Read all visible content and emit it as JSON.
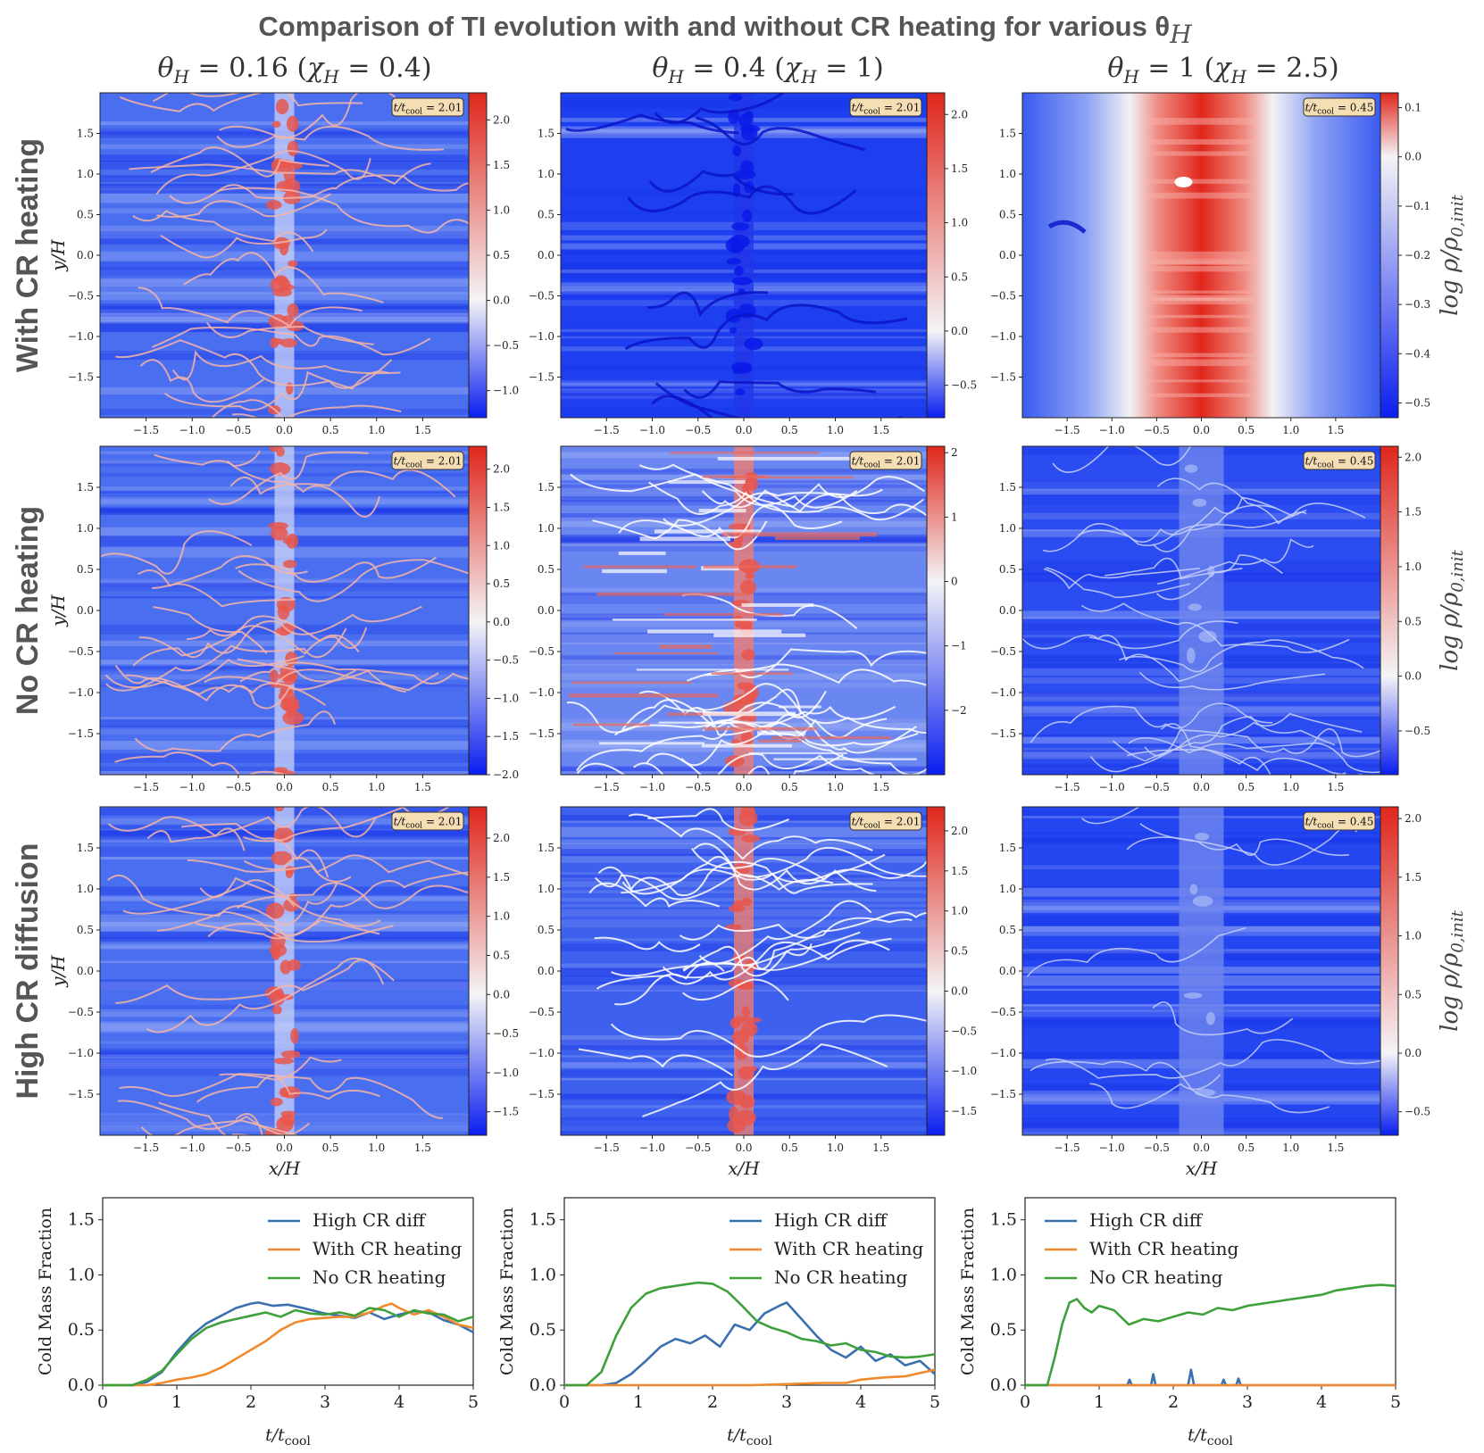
{
  "title": "Comparison of TI evolution with and without CR heating for various θ",
  "title_sub": "H",
  "columns": [
    {
      "theta": "0.16",
      "chi": "0.4"
    },
    {
      "theta": "0.4",
      "chi": "1"
    },
    {
      "theta": "1",
      "chi": "2.5"
    }
  ],
  "col_header_parts": {
    "theta": "θ",
    "sub": "H",
    "eq": " = ",
    "chi": "χ"
  },
  "rows": [
    "With CR heating",
    "No CR heating",
    "High CR diffusion"
  ],
  "axis_labels": {
    "x": "x/H",
    "y": "y/H",
    "colorbar": "log ρ/ρ",
    "colorbar_sub": "0,init"
  },
  "spatial_ticks": [
    "−1.5",
    "−1.0",
    "−0.5",
    "0.0",
    "0.5",
    "1.0",
    "1.5"
  ],
  "spatial_tick_values": [
    -1.5,
    -1.0,
    -0.5,
    0.0,
    0.5,
    1.0,
    1.5
  ],
  "colors": {
    "low": "#0a1ef0",
    "mid": "#f4f4f6",
    "high": "#e0261c",
    "badge_bg": "#f5deb3"
  },
  "panels": [
    {
      "row": 0,
      "col": 0,
      "time": "2.01",
      "cbar_range": [
        -1.3,
        2.3
      ],
      "cbar_ticks": [
        -1.0,
        -0.5,
        0.0,
        0.5,
        1.0,
        1.5,
        2.0
      ],
      "cbar_tick_labels": [
        "−1.0",
        "−0.5",
        "0.0",
        "0.5",
        "1.0",
        "1.5",
        "2.0"
      ],
      "pattern": "filaments"
    },
    {
      "row": 0,
      "col": 1,
      "time": "2.01",
      "cbar_range": [
        -0.8,
        2.2
      ],
      "cbar_ticks": [
        -0.5,
        0.0,
        0.5,
        1.0,
        1.5,
        2.0
      ],
      "cbar_tick_labels": [
        "−0.5",
        "0.0",
        "0.5",
        "1.0",
        "1.5",
        "2.0"
      ],
      "pattern": "dark"
    },
    {
      "row": 0,
      "col": 2,
      "time": "0.45",
      "cbar_range": [
        -0.53,
        0.13
      ],
      "cbar_ticks": [
        -0.5,
        -0.4,
        -0.3,
        -0.2,
        -0.1,
        0.0,
        0.1
      ],
      "cbar_tick_labels": [
        "−0.5",
        "−0.4",
        "−0.3",
        "−0.2",
        "−0.1",
        "0.0",
        "0.1"
      ],
      "pattern": "hotcore"
    },
    {
      "row": 1,
      "col": 0,
      "time": "2.01",
      "cbar_range": [
        -2.0,
        2.3
      ],
      "cbar_ticks": [
        -2.0,
        -1.5,
        -1.0,
        -0.5,
        0.0,
        0.5,
        1.0,
        1.5,
        2.0
      ],
      "cbar_tick_labels": [
        "−2.0",
        "−1.5",
        "−1.0",
        "−0.5",
        "0.0",
        "0.5",
        "1.0",
        "1.5",
        "2.0"
      ],
      "pattern": "filaments"
    },
    {
      "row": 1,
      "col": 1,
      "time": "2.01",
      "cbar_range": [
        -3.0,
        2.1
      ],
      "cbar_ticks": [
        -2,
        -1,
        0,
        1,
        2
      ],
      "cbar_tick_labels": [
        "−2",
        "−1",
        "0",
        "1",
        "2"
      ],
      "pattern": "turbulent"
    },
    {
      "row": 1,
      "col": 2,
      "time": "0.45",
      "cbar_range": [
        -0.9,
        2.1
      ],
      "cbar_ticks": [
        -0.5,
        0.0,
        0.5,
        1.0,
        1.5,
        2.0
      ],
      "cbar_tick_labels": [
        "−0.5",
        "0.0",
        "0.5",
        "1.0",
        "1.5",
        "2.0"
      ],
      "pattern": "waves"
    },
    {
      "row": 2,
      "col": 0,
      "time": "2.01",
      "cbar_range": [
        -1.8,
        2.4
      ],
      "cbar_ticks": [
        -1.5,
        -1.0,
        -0.5,
        0.0,
        0.5,
        1.0,
        1.5,
        2.0
      ],
      "cbar_tick_labels": [
        "−1.5",
        "−1.0",
        "−0.5",
        "0.0",
        "0.5",
        "1.0",
        "1.5",
        "2.0"
      ],
      "pattern": "filaments"
    },
    {
      "row": 2,
      "col": 1,
      "time": "2.01",
      "cbar_range": [
        -1.8,
        2.3
      ],
      "cbar_ticks": [
        -1.5,
        -1.0,
        -0.5,
        0.0,
        0.5,
        1.0,
        1.5,
        2.0
      ],
      "cbar_tick_labels": [
        "−1.5",
        "−1.0",
        "−0.5",
        "0.0",
        "0.5",
        "1.0",
        "1.5",
        "2.0"
      ],
      "pattern": "streaks"
    },
    {
      "row": 2,
      "col": 2,
      "time": "0.45",
      "cbar_range": [
        -0.7,
        2.1
      ],
      "cbar_ticks": [
        -0.5,
        0.0,
        0.5,
        1.0,
        1.5,
        2.0
      ],
      "cbar_tick_labels": [
        "−0.5",
        "0.0",
        "0.5",
        "1.0",
        "1.5",
        "2.0"
      ],
      "pattern": "smooth"
    }
  ],
  "chart_data": [
    {
      "type": "line",
      "title": "θH = 0.16 (χH = 0.4)",
      "xlabel": "t/tcool",
      "ylabel": "Cold Mass Fraction",
      "xlim": [
        0,
        5
      ],
      "ylim": [
        0,
        1.7
      ],
      "xticks": [
        0,
        1,
        2,
        3,
        4,
        5
      ],
      "yticks": [
        0.0,
        0.5,
        1.0,
        1.5
      ],
      "legend": "upper-right",
      "series": [
        {
          "name": "High CR diff",
          "color": "#3a70b0",
          "x": [
            0,
            0.4,
            0.6,
            0.8,
            1.0,
            1.2,
            1.4,
            1.6,
            1.8,
            2.0,
            2.1,
            2.3,
            2.5,
            2.7,
            3.0,
            3.2,
            3.4,
            3.6,
            3.8,
            4.0,
            4.2,
            4.4,
            4.6,
            4.8,
            5.0
          ],
          "y": [
            0,
            0.0,
            0.03,
            0.12,
            0.3,
            0.45,
            0.56,
            0.63,
            0.7,
            0.74,
            0.75,
            0.72,
            0.73,
            0.7,
            0.65,
            0.63,
            0.61,
            0.66,
            0.6,
            0.64,
            0.67,
            0.66,
            0.59,
            0.55,
            0.48
          ]
        },
        {
          "name": "With CR heating",
          "color": "#f08a2c",
          "x": [
            0,
            0.6,
            0.8,
            1.0,
            1.2,
            1.4,
            1.6,
            1.8,
            2.0,
            2.2,
            2.4,
            2.6,
            2.8,
            3.0,
            3.2,
            3.4,
            3.6,
            3.8,
            3.9,
            4.0,
            4.2,
            4.4,
            4.6,
            4.8,
            5.0
          ],
          "y": [
            0,
            0.0,
            0.02,
            0.05,
            0.07,
            0.1,
            0.16,
            0.24,
            0.32,
            0.4,
            0.5,
            0.57,
            0.6,
            0.61,
            0.62,
            0.62,
            0.66,
            0.72,
            0.74,
            0.7,
            0.64,
            0.68,
            0.62,
            0.55,
            0.52
          ]
        },
        {
          "name": "No CR heating",
          "color": "#3ea03a",
          "x": [
            0,
            0.4,
            0.6,
            0.8,
            1.0,
            1.2,
            1.4,
            1.6,
            1.8,
            2.0,
            2.2,
            2.4,
            2.6,
            2.8,
            3.0,
            3.2,
            3.4,
            3.6,
            3.8,
            4.0,
            4.2,
            4.4,
            4.6,
            4.8,
            5.0
          ],
          "y": [
            0,
            0.0,
            0.05,
            0.13,
            0.28,
            0.42,
            0.52,
            0.57,
            0.6,
            0.63,
            0.66,
            0.62,
            0.68,
            0.65,
            0.64,
            0.66,
            0.63,
            0.7,
            0.68,
            0.62,
            0.68,
            0.65,
            0.64,
            0.58,
            0.62
          ]
        }
      ]
    },
    {
      "type": "line",
      "title": "θH = 0.4 (χH = 1)",
      "xlabel": "t/tcool",
      "ylabel": "Cold Mass Fraction",
      "xlim": [
        0,
        5
      ],
      "ylim": [
        0,
        1.7
      ],
      "xticks": [
        0,
        1,
        2,
        3,
        4,
        5
      ],
      "yticks": [
        0.0,
        0.5,
        1.0,
        1.5
      ],
      "legend": "upper-right",
      "series": [
        {
          "name": "High CR diff",
          "color": "#3a70b0",
          "x": [
            0,
            0.5,
            0.7,
            0.9,
            1.1,
            1.3,
            1.5,
            1.7,
            1.9,
            2.1,
            2.3,
            2.5,
            2.7,
            2.9,
            3.0,
            3.2,
            3.4,
            3.6,
            3.8,
            4.0,
            4.2,
            4.4,
            4.6,
            4.8,
            5.0
          ],
          "y": [
            0,
            0.0,
            0.02,
            0.1,
            0.22,
            0.35,
            0.42,
            0.38,
            0.45,
            0.35,
            0.55,
            0.5,
            0.65,
            0.72,
            0.75,
            0.6,
            0.45,
            0.32,
            0.25,
            0.35,
            0.22,
            0.28,
            0.18,
            0.22,
            0.1
          ]
        },
        {
          "name": "With CR heating",
          "color": "#f08a2c",
          "x": [
            0,
            1.0,
            2.0,
            2.5,
            3.0,
            3.5,
            3.8,
            4.0,
            4.3,
            4.6,
            4.8,
            5.0
          ],
          "y": [
            0,
            0.0,
            0.0,
            0.0,
            0.01,
            0.02,
            0.02,
            0.05,
            0.07,
            0.08,
            0.11,
            0.14
          ]
        },
        {
          "name": "No CR heating",
          "color": "#3ea03a",
          "x": [
            0,
            0.3,
            0.5,
            0.7,
            0.9,
            1.1,
            1.3,
            1.5,
            1.8,
            2.0,
            2.2,
            2.4,
            2.6,
            2.8,
            3.0,
            3.2,
            3.4,
            3.6,
            3.8,
            4.0,
            4.2,
            4.4,
            4.6,
            4.8,
            5.0
          ],
          "y": [
            0,
            0.0,
            0.12,
            0.45,
            0.7,
            0.83,
            0.88,
            0.9,
            0.93,
            0.92,
            0.85,
            0.72,
            0.58,
            0.52,
            0.48,
            0.42,
            0.4,
            0.36,
            0.38,
            0.32,
            0.3,
            0.26,
            0.25,
            0.26,
            0.28
          ]
        }
      ]
    },
    {
      "type": "line",
      "title": "θH = 1 (χH = 2.5)",
      "xlabel": "t/tcool",
      "ylabel": "Cold Mass Fraction",
      "xlim": [
        0,
        5
      ],
      "ylim": [
        0,
        1.7
      ],
      "xticks": [
        0,
        1,
        2,
        3,
        4,
        5
      ],
      "yticks": [
        0.0,
        0.5,
        1.0,
        1.5
      ],
      "legend": "upper-left",
      "series": [
        {
          "name": "High CR diff",
          "color": "#3a70b0",
          "x": [
            0,
            1.38,
            1.41,
            1.44,
            1.7,
            1.73,
            1.76,
            2.2,
            2.24,
            2.28,
            2.65,
            2.68,
            2.71,
            2.85,
            2.88,
            2.91,
            5.0
          ],
          "y": [
            0,
            0.0,
            0.05,
            0.0,
            0.0,
            0.1,
            0.0,
            0.0,
            0.14,
            0.0,
            0.0,
            0.05,
            0.0,
            0.0,
            0.06,
            0.0,
            0.0
          ]
        },
        {
          "name": "With CR heating",
          "color": "#f08a2c",
          "x": [
            0,
            5.0
          ],
          "y": [
            0.0,
            0.0
          ]
        },
        {
          "name": "No CR heating",
          "color": "#3ea03a",
          "x": [
            0,
            0.3,
            0.4,
            0.5,
            0.6,
            0.7,
            0.8,
            0.9,
            1.0,
            1.2,
            1.4,
            1.6,
            1.8,
            2.0,
            2.2,
            2.4,
            2.6,
            2.8,
            3.0,
            3.2,
            3.4,
            3.6,
            3.8,
            4.0,
            4.2,
            4.4,
            4.6,
            4.8,
            5.0
          ],
          "y": [
            0,
            0.0,
            0.25,
            0.55,
            0.75,
            0.78,
            0.7,
            0.66,
            0.72,
            0.68,
            0.55,
            0.6,
            0.58,
            0.62,
            0.66,
            0.64,
            0.7,
            0.68,
            0.72,
            0.74,
            0.76,
            0.78,
            0.8,
            0.82,
            0.86,
            0.88,
            0.9,
            0.91,
            0.9
          ]
        }
      ]
    }
  ]
}
